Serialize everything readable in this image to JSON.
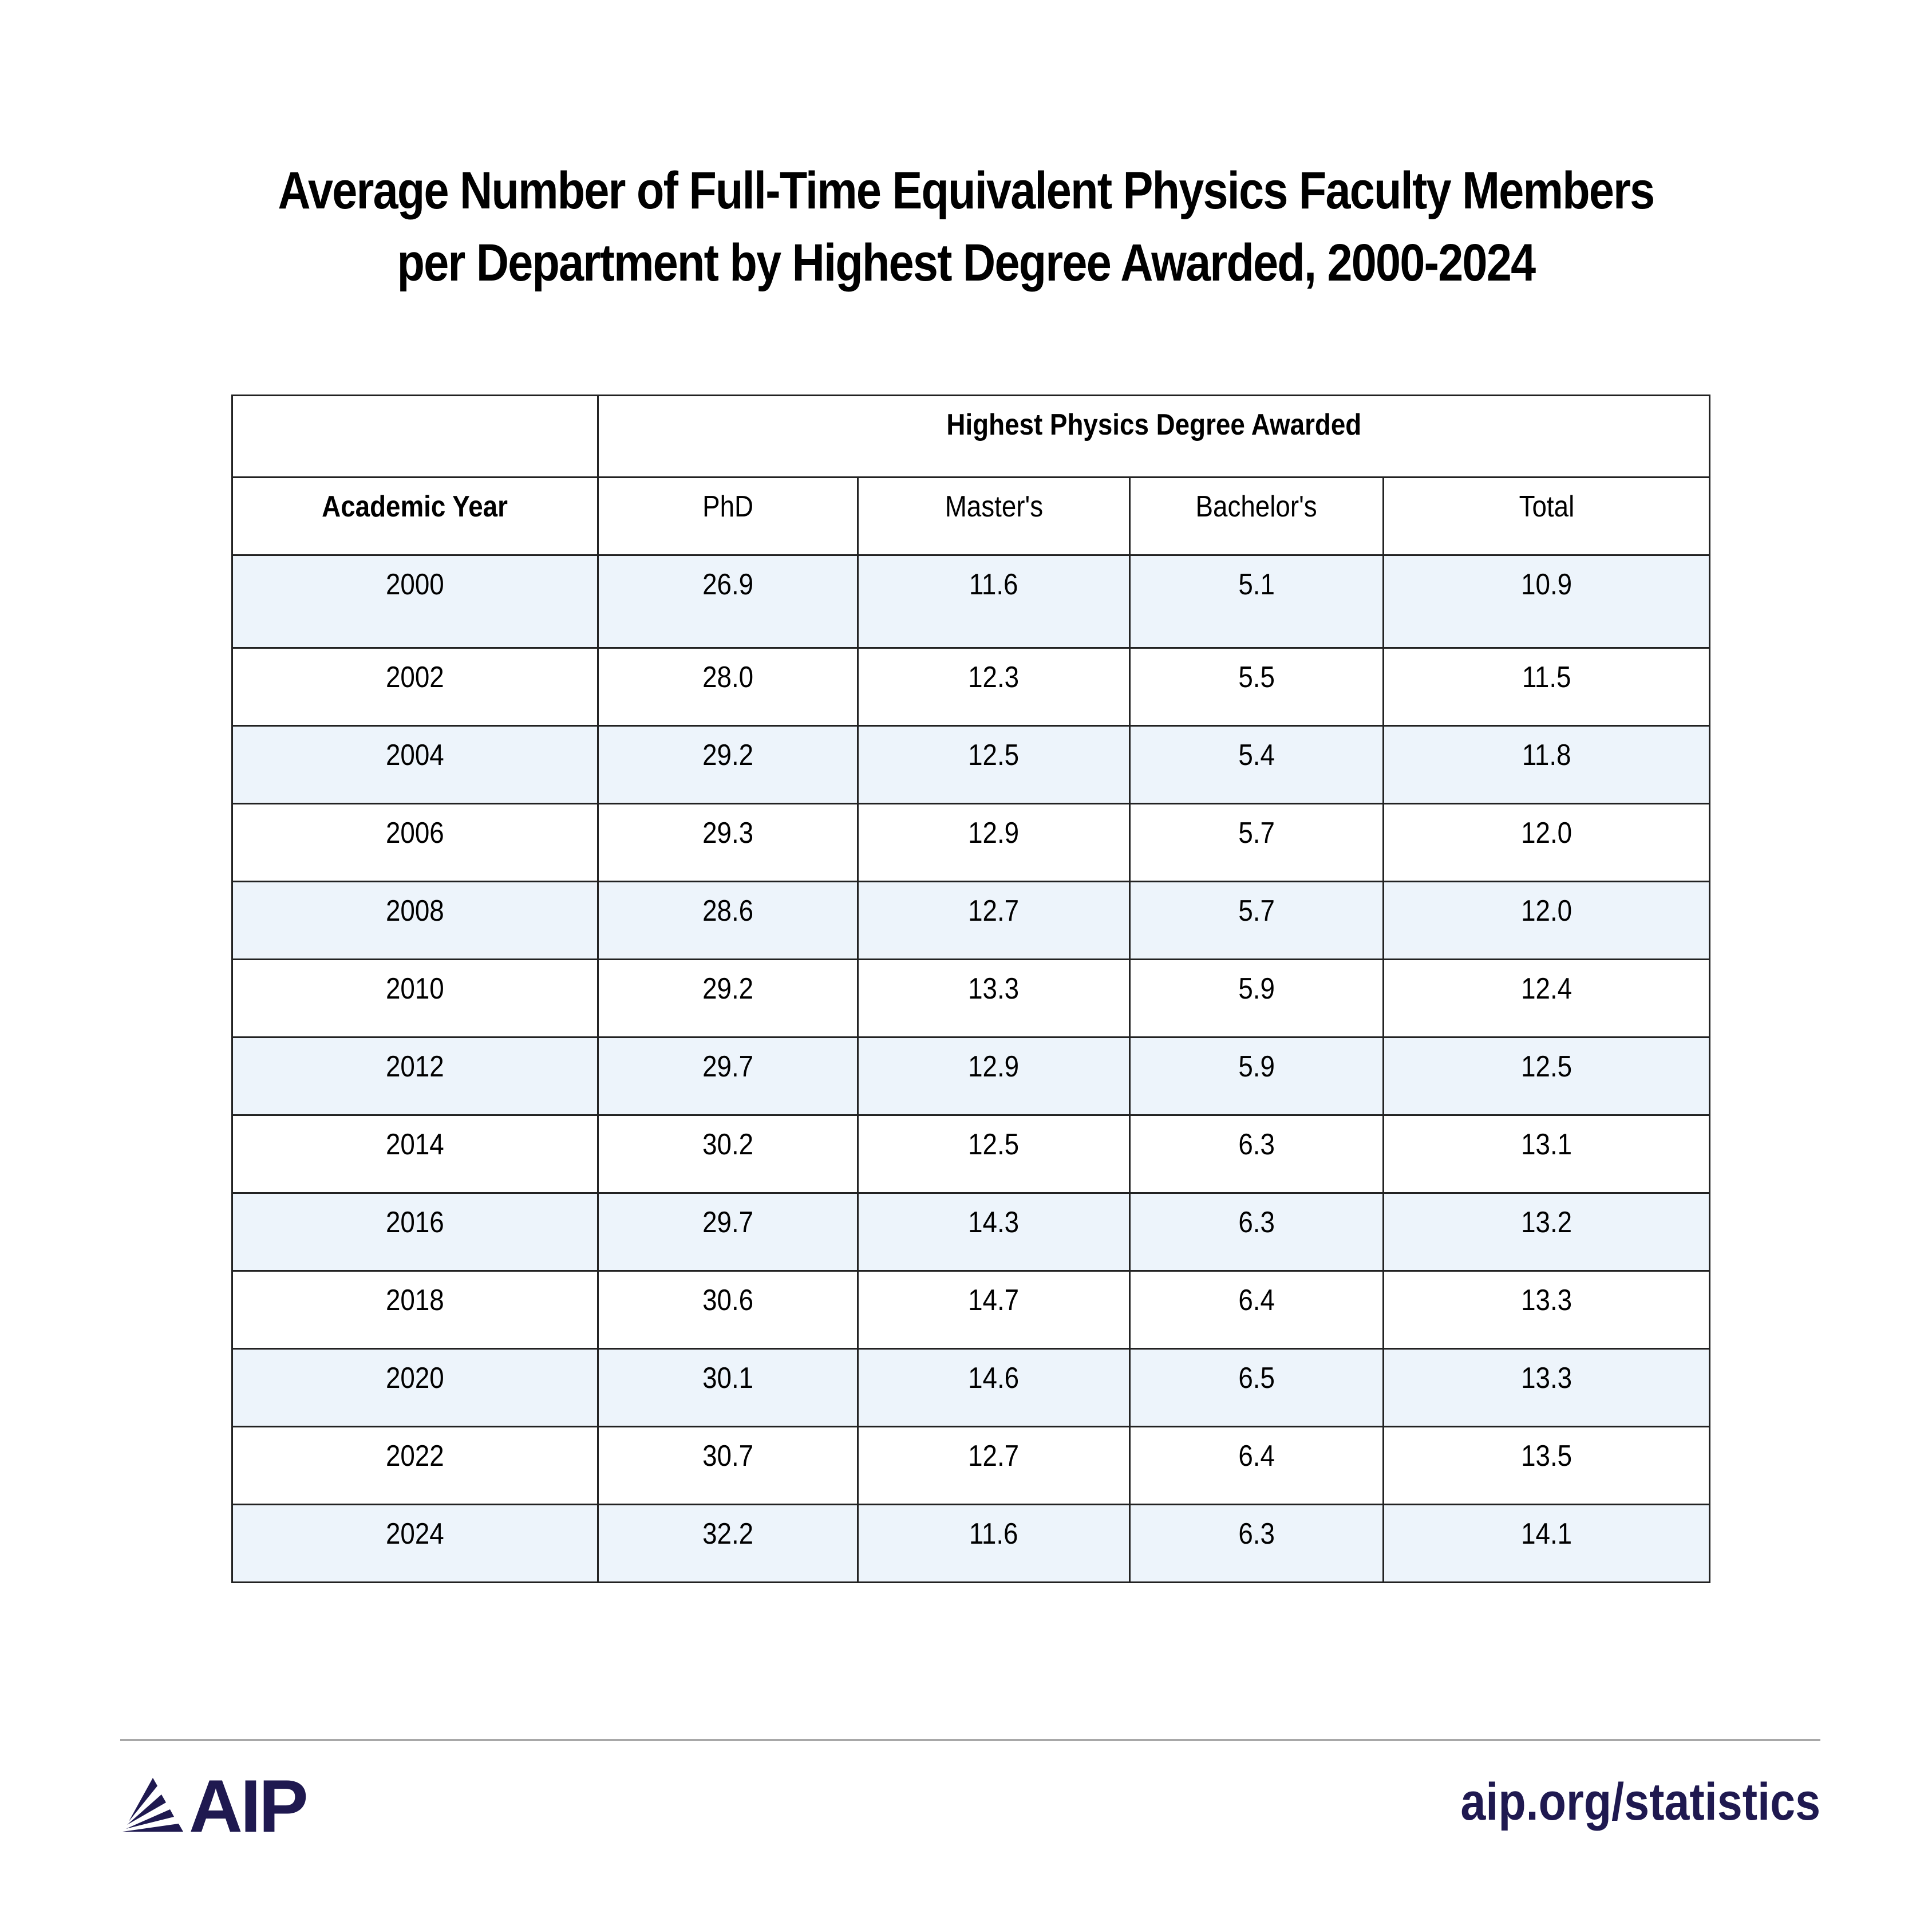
{
  "title": {
    "line1": "Average Number of Full-Time Equivalent Physics Faculty Members",
    "line2": "per Department by Highest Degree Awarded, 2000-2024"
  },
  "table": {
    "group_header": "Highest Physics Degree Awarded",
    "columns": [
      "Academic Year",
      "PhD",
      "Master's",
      "Bachelor's",
      "Total"
    ],
    "rows": [
      [
        "2000",
        "26.9",
        "11.6",
        "5.1",
        "10.9"
      ],
      [
        "2002",
        "28.0",
        "12.3",
        "5.5",
        "11.5"
      ],
      [
        "2004",
        "29.2",
        "12.5",
        "5.4",
        "11.8"
      ],
      [
        "2006",
        "29.3",
        "12.9",
        "5.7",
        "12.0"
      ],
      [
        "2008",
        "28.6",
        "12.7",
        "5.7",
        "12.0"
      ],
      [
        "2010",
        "29.2",
        "13.3",
        "5.9",
        "12.4"
      ],
      [
        "2012",
        "29.7",
        "12.9",
        "5.9",
        "12.5"
      ],
      [
        "2014",
        "30.2",
        "12.5",
        "6.3",
        "13.1"
      ],
      [
        "2016",
        "29.7",
        "14.3",
        "6.3",
        "13.2"
      ],
      [
        "2018",
        "30.6",
        "14.7",
        "6.4",
        "13.3"
      ],
      [
        "2020",
        "30.1",
        "14.6",
        "6.5",
        "13.3"
      ],
      [
        "2022",
        "30.7",
        "12.7",
        "6.4",
        "13.5"
      ],
      [
        "2024",
        "32.2",
        "11.6",
        "6.3",
        "14.1"
      ]
    ]
  },
  "footer": {
    "logo_text": "AIP",
    "url": "aip.org/statistics"
  },
  "colors": {
    "brand": "#1f1950",
    "row_alt": "#edf4fb",
    "rule": "#a8a8a8"
  }
}
